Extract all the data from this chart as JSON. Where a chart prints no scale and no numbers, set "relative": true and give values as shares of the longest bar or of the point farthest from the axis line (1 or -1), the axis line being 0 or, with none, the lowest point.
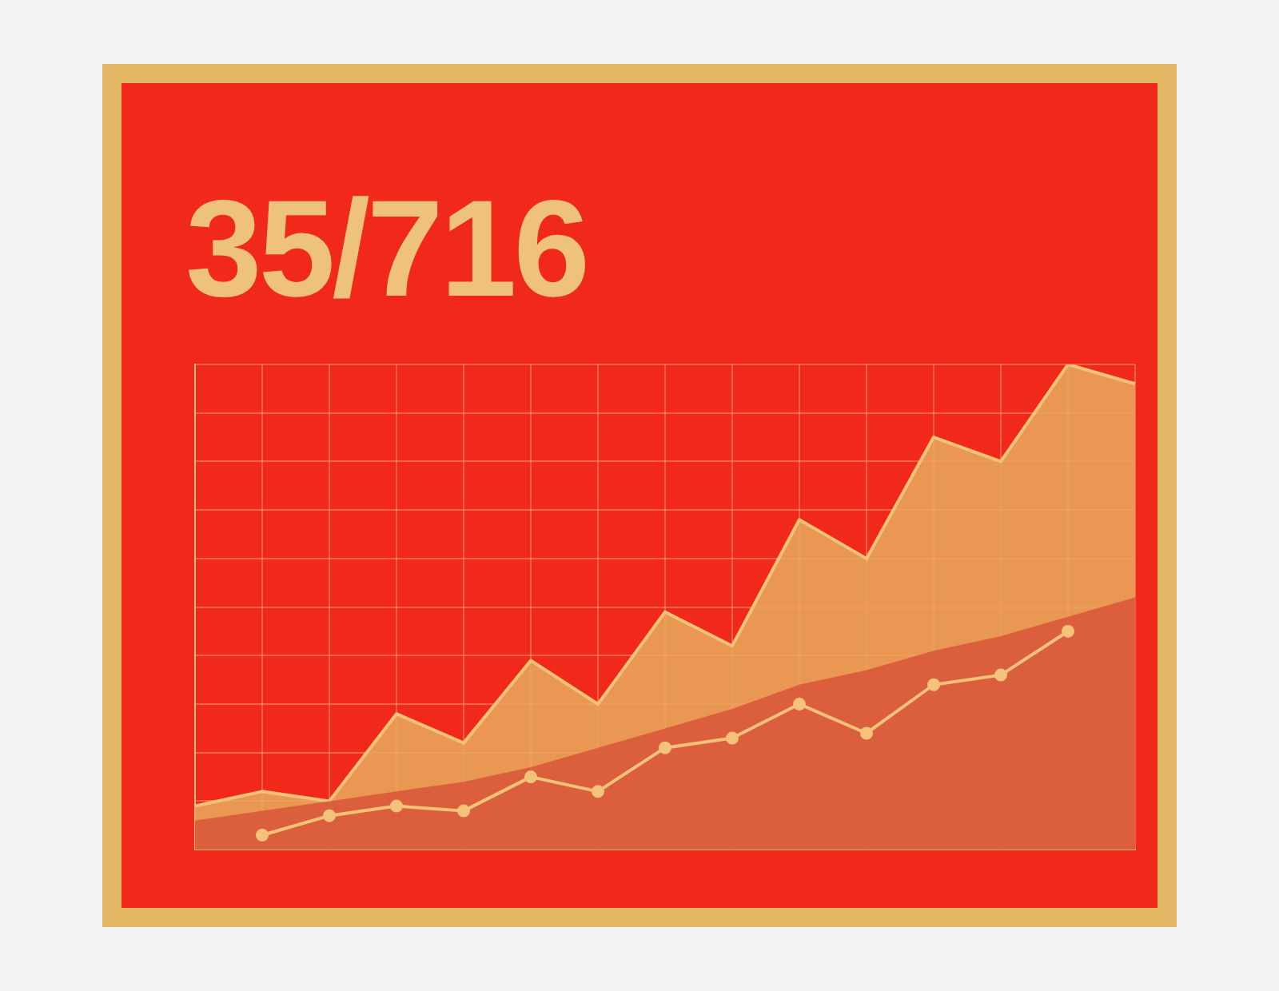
{
  "chart_data": {
    "type": "area",
    "title": "35/716",
    "relative": true,
    "grid": true,
    "categories": [
      null,
      null,
      null,
      null,
      null,
      null,
      null,
      null,
      null,
      null,
      null,
      null,
      null,
      null,
      null
    ],
    "series": [
      {
        "color": "#e9a95c",
        "values": [
          0.09,
          0.12,
          0.1,
          0.28,
          0.22,
          0.39,
          0.3,
          0.49,
          0.42,
          0.68,
          0.6,
          0.85,
          0.8,
          1.0,
          0.96
        ]
      },
      {
        "color": "#d9573a",
        "values": [
          0.06,
          0.08,
          0.1,
          0.12,
          0.14,
          0.17,
          0.21,
          0.25,
          0.29,
          0.34,
          0.37,
          0.41,
          0.44,
          0.48,
          0.52
        ]
      },
      {
        "type": "line",
        "color": "#f5c27a",
        "marker": "circle",
        "values": [
          null,
          0.03,
          0.07,
          0.09,
          0.08,
          0.15,
          0.12,
          0.21,
          0.23,
          0.3,
          0.24,
          0.34,
          0.36,
          0.45,
          null
        ]
      }
    ]
  }
}
